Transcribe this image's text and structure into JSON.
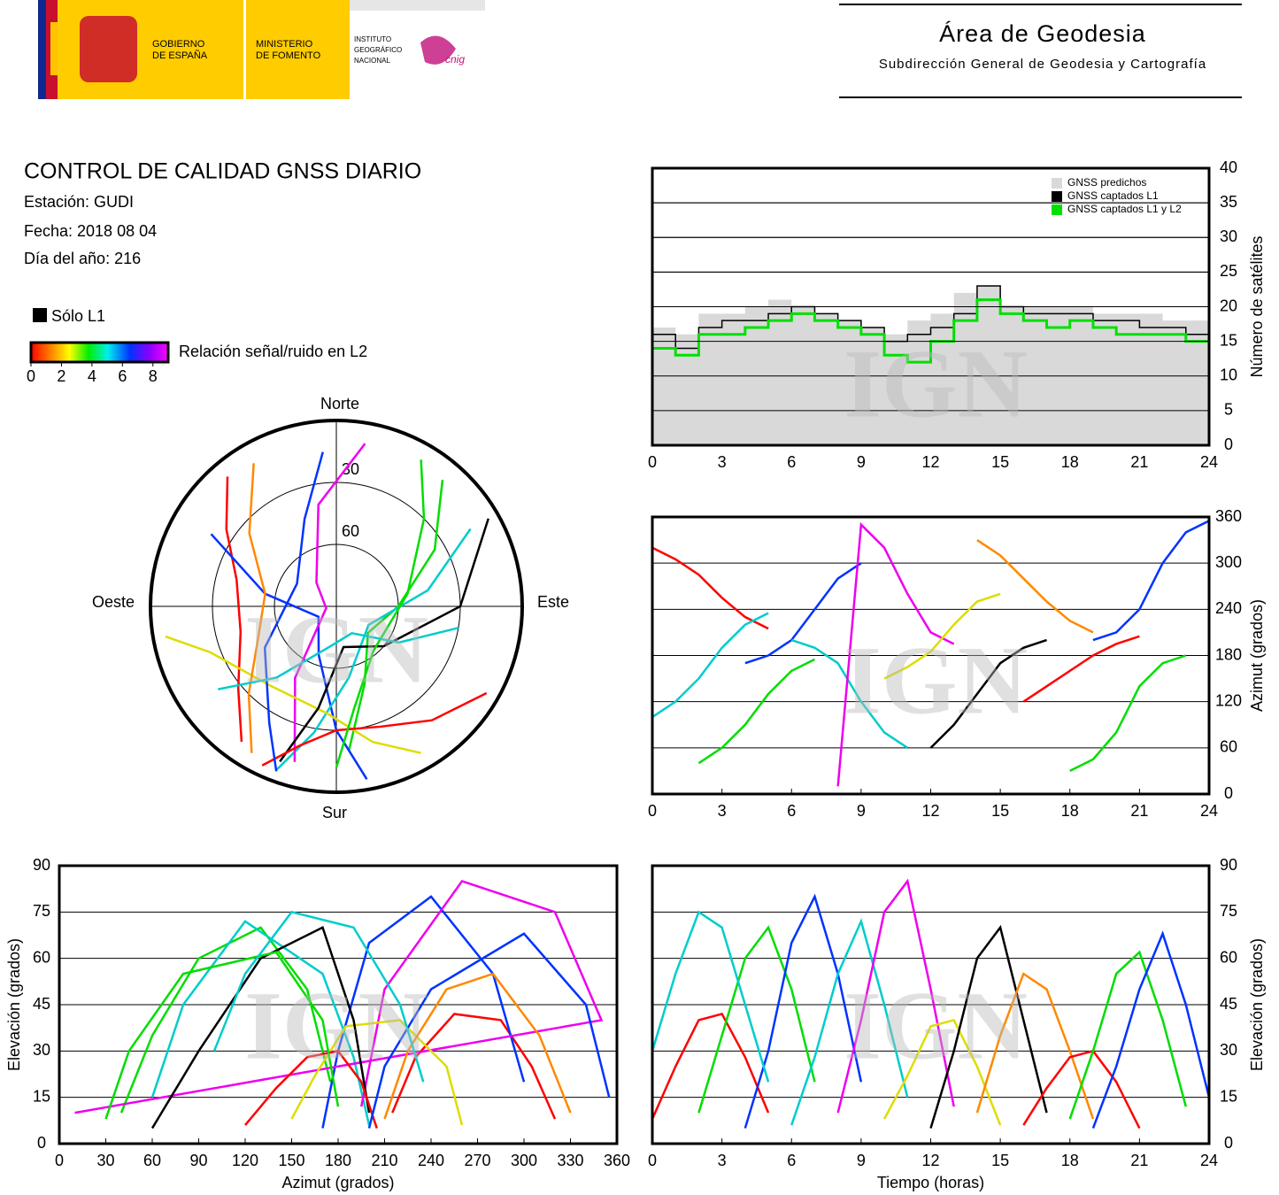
{
  "header": {
    "gobierno": [
      "GOBIERNO",
      "DE ESPAÑA"
    ],
    "ministerio": [
      "MINISTERIO",
      "DE FOMENTO"
    ],
    "instituto": [
      "INSTITUTO",
      "GEOGRÁFICO",
      "NACIONAL"
    ],
    "cnig": "cnig",
    "area": "Área de Geodesia",
    "subdireccion": "Subdirección General de Geodesia y Cartografía"
  },
  "info": {
    "title": "CONTROL DE CALIDAD GNSS DIARIO",
    "station": "Estación: GUDI",
    "date": "Fecha: 2018 08 04",
    "doy": "Día del año: 216",
    "solo_l1": "Sólo L1",
    "colorbar": {
      "label": "Relación señal/ruido en L2",
      "clim": [
        0,
        9
      ],
      "ticks": [
        0,
        2,
        4,
        6,
        8
      ]
    }
  },
  "watermark": "IGN",
  "chart_data": [
    {
      "type": "step",
      "x": [
        0,
        1,
        2,
        3,
        4,
        5,
        6,
        7,
        8,
        9,
        10,
        11,
        12,
        13,
        14,
        15,
        16,
        17,
        18,
        19,
        20,
        21,
        22,
        23,
        24
      ],
      "xlim": [
        0,
        24
      ],
      "xticks": [
        0,
        3,
        6,
        9,
        12,
        15,
        18,
        21,
        24
      ],
      "ylim": [
        0,
        40
      ],
      "yticks": [
        0,
        5,
        10,
        15,
        20,
        25,
        30,
        35,
        40
      ],
      "ylabel": "Número de satélites",
      "grid": true,
      "legend": "upper right",
      "series": [
        {
          "name": "GNSS predichos",
          "color": "#d9d9d9",
          "values": [
            17,
            16,
            19,
            19,
            20,
            21,
            20,
            19,
            18,
            17,
            16,
            18,
            19,
            22,
            23,
            20,
            20,
            20,
            20,
            19,
            19,
            19,
            18,
            18,
            18
          ]
        },
        {
          "name": "GNSS captados L1",
          "color": "#000000",
          "values": [
            16,
            14,
            17,
            18,
            18,
            19,
            20,
            19,
            18,
            17,
            15,
            16,
            17,
            19,
            23,
            20,
            19,
            19,
            19,
            18,
            18,
            17,
            17,
            16,
            17
          ]
        },
        {
          "name": "GNSS captados L1 y L2",
          "color": "#00e000",
          "values": [
            14,
            13,
            16,
            16,
            17,
            18,
            19,
            18,
            17,
            16,
            13,
            12,
            15,
            18,
            21,
            19,
            18,
            17,
            18,
            17,
            16,
            16,
            16,
            15,
            16
          ]
        }
      ]
    },
    {
      "type": "polar",
      "north": "Norte",
      "south": "Sur",
      "east": "Este",
      "west": "Oeste",
      "rticks": [
        30,
        60
      ],
      "series": [
        {
          "color": "#ff0000",
          "time": [
            0,
            1,
            2,
            3,
            4,
            5
          ],
          "azimuth": [
            320,
            305,
            285,
            255,
            230,
            215
          ],
          "elevation": [
            8,
            25,
            40,
            42,
            28,
            10
          ]
        },
        {
          "color": "#00dd00",
          "time": [
            2,
            3,
            4,
            5,
            6,
            7
          ],
          "azimuth": [
            40,
            60,
            90,
            130,
            160,
            175
          ],
          "elevation": [
            10,
            35,
            60,
            70,
            50,
            20
          ]
        },
        {
          "color": "#0033ff",
          "time": [
            4,
            5,
            6,
            7,
            8,
            9
          ],
          "azimuth": [
            170,
            180,
            200,
            240,
            280,
            300
          ],
          "elevation": [
            5,
            30,
            65,
            80,
            55,
            20
          ]
        },
        {
          "color": "#00cccc",
          "time": [
            6,
            7,
            8,
            9,
            10,
            11
          ],
          "azimuth": [
            200,
            190,
            170,
            120,
            80,
            60
          ],
          "elevation": [
            6,
            28,
            55,
            72,
            45,
            15
          ]
        },
        {
          "color": "#ee00ee",
          "time": [
            8,
            9,
            10,
            11,
            12,
            13
          ],
          "azimuth": [
            10,
            350,
            320,
            260,
            210,
            195
          ],
          "elevation": [
            10,
            40,
            75,
            85,
            50,
            12
          ]
        },
        {
          "color": "#dddd00",
          "time": [
            10,
            11,
            12,
            13,
            14,
            15
          ],
          "azimuth": [
            150,
            165,
            185,
            220,
            250,
            260
          ],
          "elevation": [
            8,
            22,
            38,
            40,
            25,
            6
          ]
        },
        {
          "color": "#000000",
          "time": [
            12,
            13,
            14,
            15,
            16,
            17
          ],
          "azimuth": [
            60,
            90,
            130,
            170,
            190,
            200
          ],
          "elevation": [
            5,
            30,
            60,
            70,
            40,
            10
          ]
        },
        {
          "color": "#ff8800",
          "time": [
            14,
            15,
            16,
            17,
            18,
            19
          ],
          "azimuth": [
            330,
            310,
            280,
            250,
            225,
            210
          ],
          "elevation": [
            10,
            35,
            55,
            50,
            30,
            8
          ]
        },
        {
          "color": "#ff0000",
          "time": [
            16,
            17,
            18,
            19,
            20,
            21
          ],
          "azimuth": [
            120,
            140,
            160,
            180,
            195,
            205
          ],
          "elevation": [
            6,
            18,
            28,
            30,
            20,
            5
          ]
        },
        {
          "color": "#00dd00",
          "time": [
            18,
            19,
            20,
            21,
            22,
            23
          ],
          "azimuth": [
            30,
            45,
            80,
            140,
            170,
            180
          ],
          "elevation": [
            8,
            30,
            55,
            62,
            40,
            12
          ]
        },
        {
          "color": "#0033ff",
          "time": [
            19,
            20,
            21,
            22,
            23,
            24
          ],
          "azimuth": [
            200,
            210,
            240,
            300,
            340,
            355
          ],
          "elevation": [
            5,
            25,
            50,
            68,
            45,
            15
          ]
        },
        {
          "color": "#00cccc",
          "time": [
            0,
            1,
            2,
            3,
            4,
            5
          ],
          "azimuth": [
            100,
            120,
            150,
            190,
            220,
            235
          ],
          "elevation": [
            30,
            55,
            75,
            70,
            45,
            20
          ]
        }
      ]
    },
    {
      "type": "azimuth",
      "xlim": [
        0,
        24
      ],
      "xticks": [
        0,
        3,
        6,
        9,
        12,
        15,
        18,
        21,
        24
      ],
      "ylim": [
        0,
        360
      ],
      "yticks": [
        0,
        60,
        120,
        180,
        240,
        300,
        360
      ],
      "ylabel": "Azimut (grados)",
      "grid": true
    },
    {
      "type": "skytrack",
      "xlim": [
        0,
        360
      ],
      "xticks": [
        0,
        30,
        60,
        90,
        120,
        150,
        180,
        210,
        240,
        270,
        300,
        330,
        360
      ],
      "ylim": [
        0,
        90
      ],
      "yticks": [
        0,
        15,
        30,
        45,
        60,
        75,
        90
      ],
      "xlabel": "Azimut (grados)",
      "ylabel": "Elevación (grados)",
      "grid": true
    },
    {
      "type": "elevation",
      "xlim": [
        0,
        24
      ],
      "xticks": [
        0,
        3,
        6,
        9,
        12,
        15,
        18,
        21,
        24
      ],
      "ylim": [
        0,
        90
      ],
      "yticks": [
        0,
        15,
        30,
        45,
        60,
        75,
        90
      ],
      "xlabel": "Tiempo (horas)",
      "ylabel": "Elevación (grados)",
      "grid": true
    }
  ]
}
